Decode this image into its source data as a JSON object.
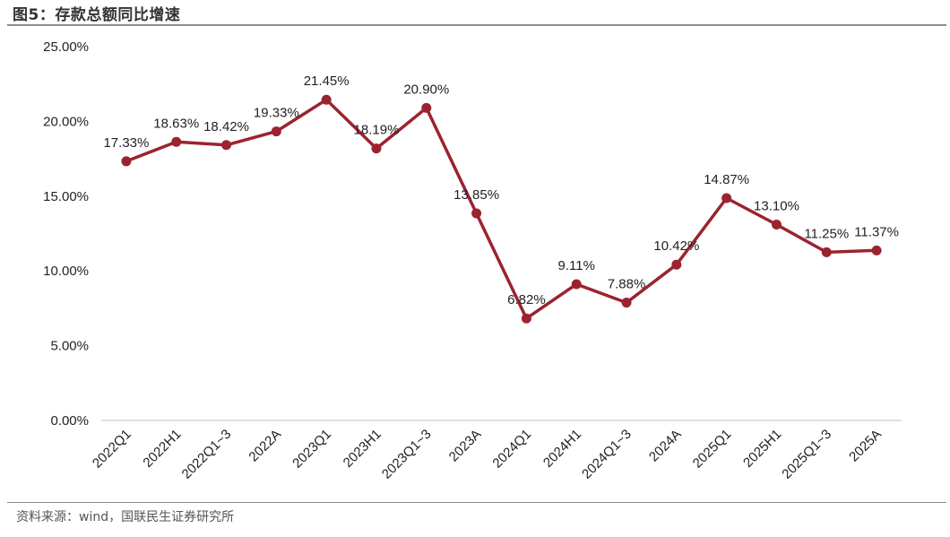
{
  "figure": {
    "title": "图5：存款总额同比增速",
    "source": "资料来源：wind，国联民生证券研究所"
  },
  "colors": {
    "series": "#9b2330",
    "axis": "#bfbfbf",
    "rule": "#8c8c8c"
  },
  "chart_data": {
    "type": "line",
    "title": "存款总额同比增速",
    "xlabel": "",
    "ylabel": "",
    "ylim": [
      0,
      25
    ],
    "yticks": [
      0,
      5,
      10,
      15,
      20,
      25
    ],
    "ytick_labels": [
      "0.00%",
      "5.00%",
      "10.00%",
      "15.00%",
      "20.00%",
      "25.00%"
    ],
    "grid": false,
    "categories": [
      "2022Q1",
      "2022H1",
      "2022Q1~3",
      "2022A",
      "2023Q1",
      "2023H1",
      "2023Q1~3",
      "2023A",
      "2024Q1",
      "2024H1",
      "2024Q1~3",
      "2024A",
      "2025Q1",
      "2025H1",
      "2025Q1~3",
      "2025A"
    ],
    "series": [
      {
        "name": "存款总额同比增速",
        "values": [
          17.33,
          18.63,
          18.42,
          19.33,
          21.45,
          18.19,
          20.9,
          13.85,
          6.82,
          9.11,
          7.88,
          10.42,
          14.87,
          13.1,
          11.25,
          11.37
        ],
        "labels": [
          "17.33%",
          "18.63%",
          "18.42%",
          "19.33%",
          "21.45%",
          "18.19%",
          "20.90%",
          "13.85%",
          "6.82%",
          "9.11%",
          "7.88%",
          "10.42%",
          "14.87%",
          "13.10%",
          "11.25%",
          "11.37%"
        ]
      }
    ]
  }
}
